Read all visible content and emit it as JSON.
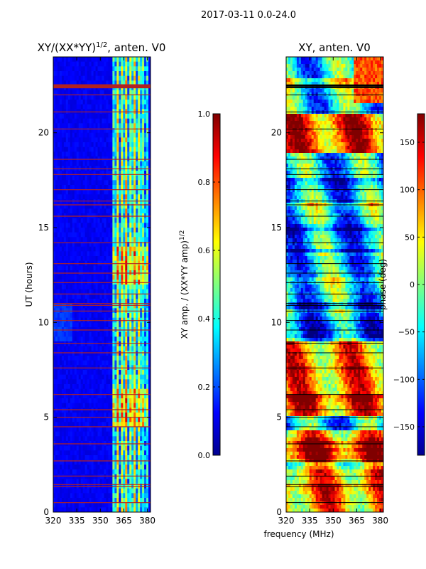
{
  "figure": {
    "suptitle": "2017-03-11 0.0-24.0",
    "xlabel": "frequency (MHz)"
  },
  "colors": {
    "jet_dark_blue": "#00008f",
    "jet_blue": "#0000ff",
    "jet_cyan": "#00ffff",
    "jet_yellow": "#ffff00",
    "jet_red": "#ff0000",
    "jet_dark_red": "#800000",
    "flag_line": "#b22222"
  },
  "chart_data": [
    {
      "type": "heatmap",
      "title_main": "XY/(XX*YY)",
      "title_sup": "1/2",
      "title_suffix": ", anten. V0",
      "xlabel": "frequency (MHz)",
      "ylabel": "UT (hours)",
      "xlim": [
        320,
        382
      ],
      "ylim": [
        0,
        24
      ],
      "x_ticks": [
        320,
        335,
        350,
        365,
        380
      ],
      "y_ticks": [
        0,
        5,
        10,
        15,
        20
      ],
      "colorbar": {
        "label_main": "XY amp. / (XX*YY amp)",
        "label_sup": "1/2",
        "range": [
          0.0,
          1.0
        ],
        "ticks": [
          "0.0",
          "0.2",
          "0.4",
          "0.6",
          "0.8",
          "1.0"
        ]
      },
      "flagged_hours": [
        0.5,
        1.35,
        1.45,
        1.9,
        2.7,
        3.6,
        4.5,
        5.0,
        5.4,
        6.2,
        7.6,
        8.4,
        8.9,
        9.6,
        10.1,
        10.6,
        10.9,
        11.0,
        11.5,
        12.1,
        12.6,
        13.1,
        14.2,
        15.6,
        16.2,
        16.4,
        17.0,
        17.8,
        18.1,
        18.6,
        20.2,
        21.1,
        22.0,
        22.4,
        22.5
      ]
    },
    {
      "type": "heatmap",
      "title_main": "XY, anten. V0",
      "xlabel": "",
      "ylabel": "",
      "xlim": [
        320,
        382
      ],
      "ylim": [
        0,
        24
      ],
      "x_ticks": [
        320,
        335,
        350,
        365,
        380
      ],
      "y_ticks": [
        0,
        5,
        10,
        15,
        20
      ],
      "colorbar": {
        "label": "phase (deg)",
        "range": [
          -180,
          180
        ],
        "ticks": [
          "150",
          "100",
          "50",
          "0",
          "−50",
          "−100",
          "−150"
        ]
      },
      "flagged_hours": [
        0.5,
        1.35,
        1.45,
        1.9,
        2.7,
        3.6,
        4.5,
        5.0,
        5.4,
        6.2,
        7.6,
        8.4,
        8.9,
        9.6,
        10.1,
        10.6,
        10.9,
        11.0,
        11.5,
        12.1,
        12.6,
        13.1,
        14.2,
        15.6,
        16.2,
        16.4,
        17.0,
        17.8,
        18.1,
        18.6,
        20.2,
        21.1,
        22.0,
        22.4,
        22.5
      ]
    }
  ]
}
